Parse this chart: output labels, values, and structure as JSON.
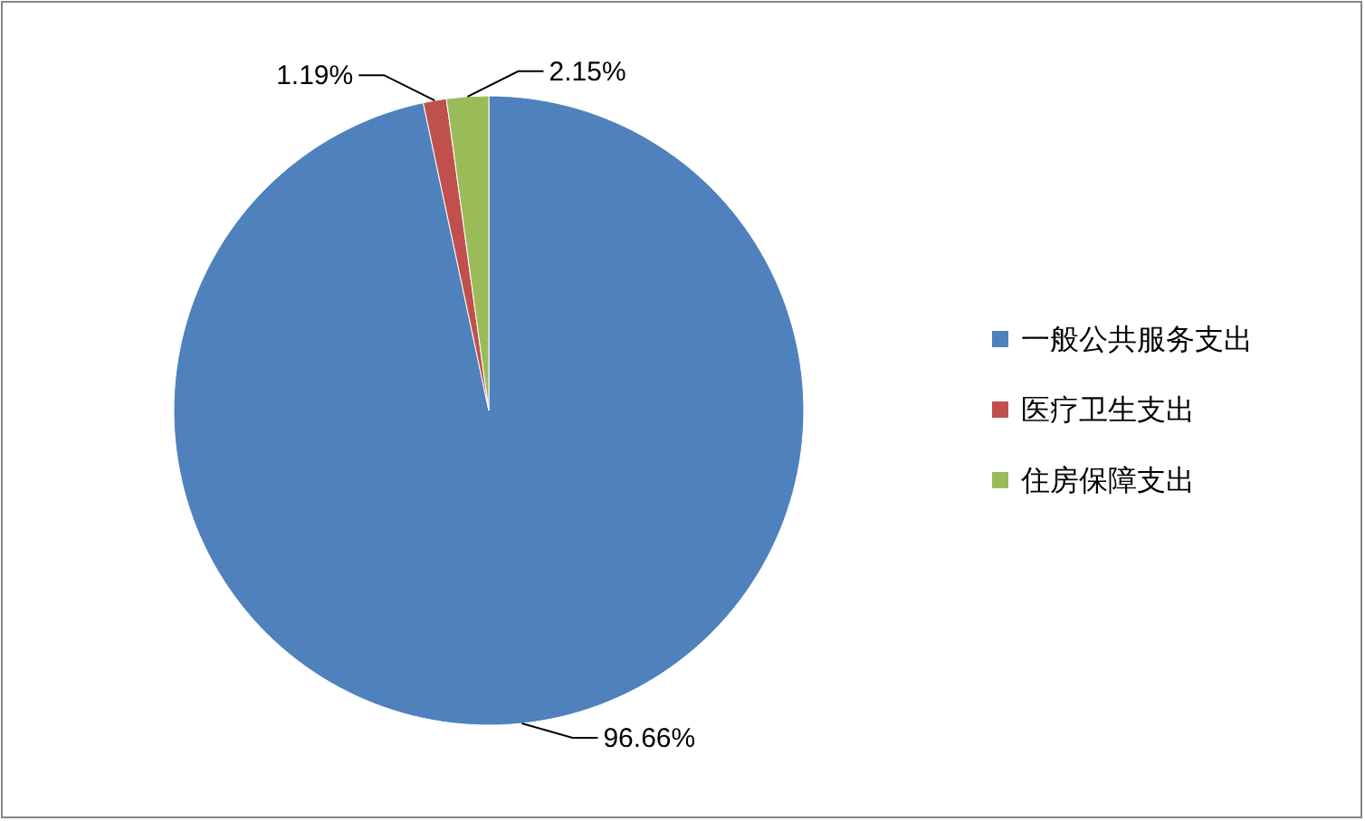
{
  "chart_data": {
    "type": "pie",
    "categories": [
      "一般公共服务支出",
      "医疗卫生支出",
      "住房保障支出"
    ],
    "values": [
      96.66,
      1.19,
      2.15
    ],
    "colors": [
      "#4f81bd",
      "#c0504d",
      "#9bbb59"
    ],
    "value_labels": [
      "96.66%",
      "1.19%",
      "2.15%"
    ],
    "legend": "right"
  }
}
